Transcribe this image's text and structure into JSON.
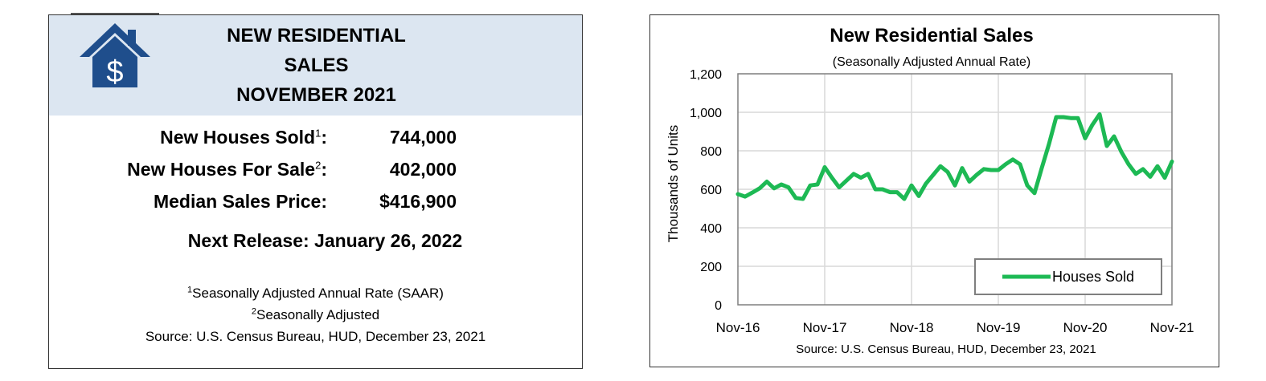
{
  "summary": {
    "title_lines": [
      "NEW RESIDENTIAL",
      "SALES",
      "NOVEMBER 2021"
    ],
    "icon": "house-dollar-icon",
    "stats": [
      {
        "label": "New Houses Sold",
        "note": "1",
        "suffix": ":",
        "value": "744,000"
      },
      {
        "label": "New Houses For Sale",
        "note": "2",
        "suffix": ":",
        "value": "402,000"
      },
      {
        "label": "Median Sales Price:",
        "note": "",
        "suffix": "",
        "value": "$416,900"
      }
    ],
    "next_release": "Next Release:  January 26, 2022",
    "footnotes": [
      {
        "mark": "1",
        "text": "Seasonally Adjusted Annual Rate (SAAR)"
      },
      {
        "mark": "2",
        "text": "Seasonally Adjusted"
      }
    ],
    "source": "Source:  U.S. Census Bureau, HUD, December 23, 2021",
    "colors": {
      "header_bg": "#dce6f1",
      "icon": "#1f4e8c"
    }
  },
  "chart_data": {
    "type": "line",
    "title": "New Residential Sales",
    "subtitle": "(Seasonally Adjusted Annual Rate)",
    "ylabel": "Thousands of Units",
    "xlabel": "",
    "ylim": [
      0,
      1200
    ],
    "yticks": [
      0,
      200,
      400,
      600,
      800,
      1000,
      1200
    ],
    "ytick_labels": [
      "0",
      "200",
      "400",
      "600",
      "800",
      "1,000",
      "1,200"
    ],
    "xtick_labels": [
      "Nov-16",
      "Nov-17",
      "Nov-18",
      "Nov-19",
      "Nov-20",
      "Nov-21"
    ],
    "grid": true,
    "legend_position": "bottom-right",
    "source": "Source:  U.S. Census Bureau, HUD, December 23, 2021",
    "series": [
      {
        "name": "Houses Sold",
        "color": "#1db954",
        "x_start": "Nov-16",
        "frequency": "monthly",
        "values": [
          575,
          562,
          583,
          605,
          640,
          605,
          625,
          610,
          555,
          550,
          620,
          625,
          715,
          660,
          610,
          645,
          680,
          660,
          680,
          600,
          600,
          585,
          585,
          550,
          620,
          565,
          630,
          675,
          720,
          690,
          620,
          710,
          640,
          675,
          705,
          700,
          700,
          730,
          755,
          730,
          620,
          580,
          710,
          835,
          975,
          975,
          970,
          970,
          865,
          935,
          990,
          825,
          875,
          795,
          730,
          680,
          705,
          665,
          720,
          660,
          744
        ]
      }
    ]
  }
}
